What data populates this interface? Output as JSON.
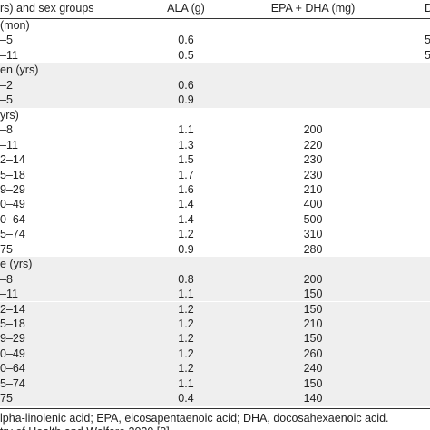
{
  "header": [
    "rs) and sex groups",
    "ALA (g)",
    "EPA + DHA (mg)",
    "DH"
  ],
  "sections": [
    {
      "title": "(mon)",
      "rows": [
        {
          "label": "–5",
          "ala": "0.6",
          "dha": "5"
        },
        {
          "label": "–11",
          "ala": "0.5",
          "dha": "5"
        }
      ]
    },
    {
      "title": "en (yrs)",
      "rows": [
        {
          "label": "–2",
          "ala": "0.6"
        },
        {
          "label": "–5",
          "ala": "0.9"
        }
      ]
    },
    {
      "title": "yrs)",
      "rows": [
        {
          "label": "–8",
          "ala": "1.1",
          "epa": "200"
        },
        {
          "label": "–11",
          "ala": "1.3",
          "epa": "220"
        },
        {
          "label": "2–14",
          "ala": "1.5",
          "epa": "230"
        },
        {
          "label": "5–18",
          "ala": "1.7",
          "epa": "230"
        },
        {
          "label": "9–29",
          "ala": "1.6",
          "epa": "210"
        },
        {
          "label": "0–49",
          "ala": "1.4",
          "epa": "400"
        },
        {
          "label": "0–64",
          "ala": "1.4",
          "epa": "500"
        },
        {
          "label": "5–74",
          "ala": "1.2",
          "epa": "310"
        },
        {
          "label": "75",
          "ala": "0.9",
          "epa": "280"
        }
      ]
    },
    {
      "title": "e (yrs)",
      "rows": [
        {
          "label": "–8",
          "ala": "0.8",
          "epa": "200"
        },
        {
          "label": "–11",
          "ala": "1.1",
          "epa": "150"
        },
        {
          "label": "2–14",
          "ala": "1.2",
          "epa": "150"
        },
        {
          "label": "5–18",
          "ala": "1.2",
          "epa": "210"
        },
        {
          "label": "9–29",
          "ala": "1.2",
          "epa": "150"
        },
        {
          "label": "0–49",
          "ala": "1.2",
          "epa": "260"
        },
        {
          "label": "0–64",
          "ala": "1.2",
          "epa": "240"
        },
        {
          "label": "5–74",
          "ala": "1.1",
          "epa": "150"
        },
        {
          "label": "75",
          "ala": "0.4",
          "epa": "140"
        }
      ]
    }
  ],
  "footnotes": [
    "lpha-linolenic acid; EPA, eicosapentaenoic acid; DHA, docosahexaenoic acid.",
    "try of Health and Welfare 2020 [8]"
  ]
}
